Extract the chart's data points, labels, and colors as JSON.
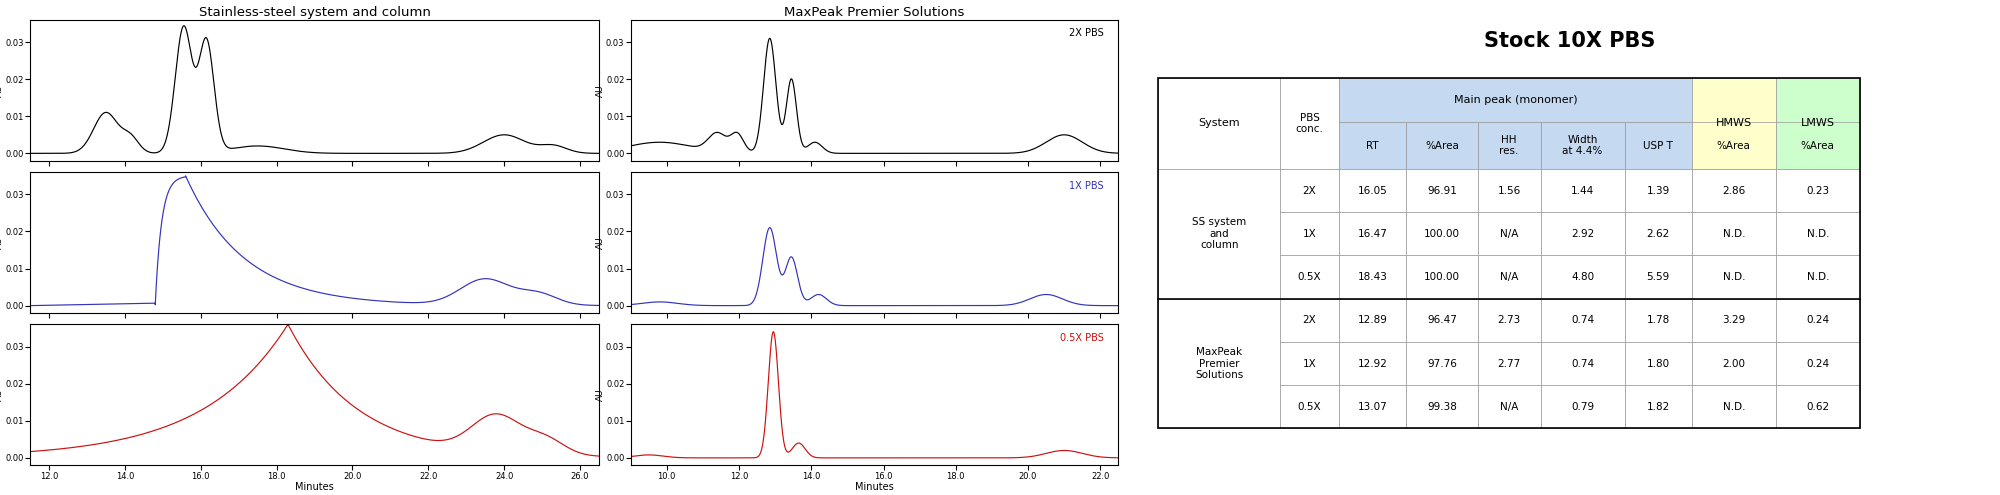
{
  "title_left": "Stainless-steel system and column",
  "title_right": "MaxPeak Premier Solutions",
  "table_title": "Stock 10X PBS",
  "ss_xlim": [
    11.5,
    26.5
  ],
  "ss_xticks": [
    12.0,
    14.0,
    16.0,
    18.0,
    20.0,
    22.0,
    24.0,
    26.0
  ],
  "mp_xlim": [
    9.0,
    22.5
  ],
  "mp_xticks": [
    10.0,
    12.0,
    14.0,
    16.0,
    18.0,
    20.0,
    22.0
  ],
  "ylim": [
    -0.002,
    0.036
  ],
  "yticks": [
    0.0,
    0.01,
    0.02,
    0.03
  ],
  "colors": [
    "black",
    "#3333bb",
    "#cc1111"
  ],
  "labels": [
    "2X PBS",
    "1X PBS",
    "0.5X PBS"
  ],
  "xlabel": "Minutes",
  "ylabel": "AU",
  "table_header_bg": "#c5d9f1",
  "table_hmws_bg": "#ffffcc",
  "table_lmws_bg": "#ccffcc",
  "table_data": {
    "rows": [
      [
        "SS system\nand\ncolumn",
        "2X",
        "16.05",
        "96.91",
        "1.56",
        "1.44",
        "1.39",
        "2.86",
        "0.23"
      ],
      [
        "",
        "1X",
        "16.47",
        "100.00",
        "N/A",
        "2.92",
        "2.62",
        "N.D.",
        "N.D."
      ],
      [
        "",
        "0.5X",
        "18.43",
        "100.00",
        "N/A",
        "4.80",
        "5.59",
        "N.D.",
        "N.D."
      ],
      [
        "MaxPeak\nPremier\nSolutions",
        "2X",
        "12.89",
        "96.47",
        "2.73",
        "0.74",
        "1.78",
        "3.29",
        "0.24"
      ],
      [
        "",
        "1X",
        "12.92",
        "97.76",
        "2.77",
        "0.74",
        "1.80",
        "2.00",
        "0.24"
      ],
      [
        "",
        "0.5X",
        "13.07",
        "99.38",
        "N/A",
        "0.79",
        "1.82",
        "N.D.",
        "0.62"
      ]
    ]
  }
}
